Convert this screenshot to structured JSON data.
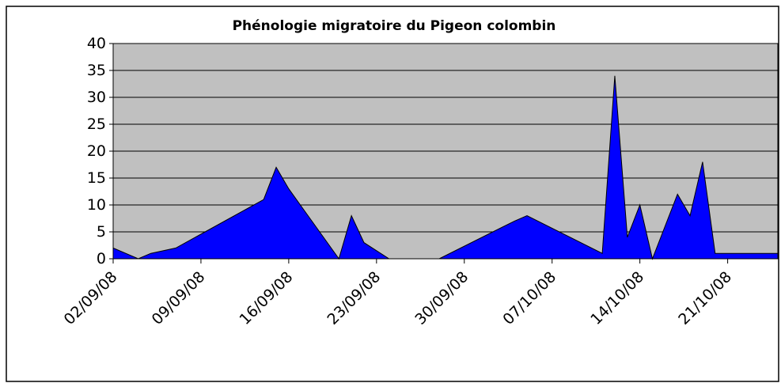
{
  "chart_data": {
    "type": "area",
    "title": "Phénologie migratoire du Pigeon colombin",
    "x": [
      "2008-09-02",
      "2008-09-04",
      "2008-09-05",
      "2008-09-07",
      "2008-09-14",
      "2008-09-15",
      "2008-09-16",
      "2008-09-20",
      "2008-09-21",
      "2008-09-22",
      "2008-09-24",
      "2008-09-28",
      "2008-10-04",
      "2008-10-05",
      "2008-10-11",
      "2008-10-12",
      "2008-10-13",
      "2008-10-14",
      "2008-10-15",
      "2008-10-17",
      "2008-10-18",
      "2008-10-19",
      "2008-10-20",
      "2008-10-25"
    ],
    "series": [
      {
        "name": "Pigeon colombin",
        "color": "#0000ff",
        "values": [
          2,
          0,
          1,
          2,
          11,
          17,
          13,
          0,
          8,
          3,
          0,
          0,
          7,
          8,
          1,
          34,
          4,
          10,
          0,
          12,
          8,
          18,
          1,
          1
        ]
      }
    ],
    "xlim": [
      "2008-09-02",
      "2008-10-25"
    ],
    "xticks": [
      {
        "value": "2008-09-02",
        "label": "02/09/08"
      },
      {
        "value": "2008-09-09",
        "label": "09/09/08"
      },
      {
        "value": "2008-09-16",
        "label": "16/09/08"
      },
      {
        "value": "2008-09-23",
        "label": "23/09/08"
      },
      {
        "value": "2008-09-30",
        "label": "30/09/08"
      },
      {
        "value": "2008-10-07",
        "label": "07/10/08"
      },
      {
        "value": "2008-10-14",
        "label": "14/10/08"
      },
      {
        "value": "2008-10-21",
        "label": "21/10/08"
      }
    ],
    "ylim": [
      0,
      40
    ],
    "yticks": [
      0,
      5,
      10,
      15,
      20,
      25,
      30,
      35,
      40
    ],
    "grid": true
  }
}
